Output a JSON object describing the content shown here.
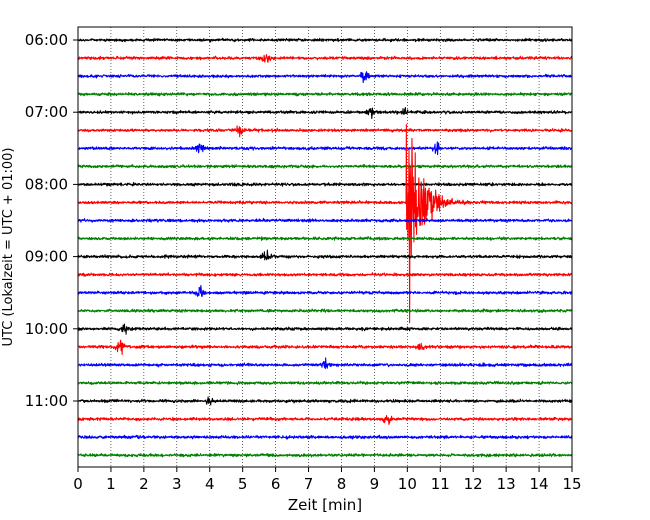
{
  "chart_data": {
    "type": "line",
    "title": "",
    "xlabel": "Zeit  [min]",
    "ylabel": "UTC (Lokalzeit = UTC + 01:00)",
    "xlim": [
      0,
      15
    ],
    "x_ticks": [
      0,
      1,
      2,
      3,
      4,
      5,
      6,
      7,
      8,
      9,
      10,
      11,
      12,
      13,
      14,
      15
    ],
    "y_tick_labels": [
      "06:00",
      "07:00",
      "08:00",
      "09:00",
      "10:00",
      "11:00"
    ],
    "y_tick_rows": [
      0,
      4,
      8,
      12,
      16,
      20
    ],
    "line_start_time": "06:00",
    "line_interval_min": 15,
    "grid_x": "dotted vertical at each minute",
    "color_cycle": [
      "#000000",
      "#ff0000",
      "#0000ff",
      "#008000"
    ],
    "series": [
      {
        "start": "06:00",
        "color": "#000000",
        "events": []
      },
      {
        "start": "06:15",
        "color": "#ff0000",
        "events": [
          {
            "t": 5.7,
            "amp": 0.4
          }
        ]
      },
      {
        "start": "06:30",
        "color": "#0000ff",
        "events": [
          {
            "t": 8.7,
            "amp": 0.45
          }
        ]
      },
      {
        "start": "06:45",
        "color": "#008000",
        "events": []
      },
      {
        "start": "07:00",
        "color": "#000000",
        "events": [
          {
            "t": 8.9,
            "amp": 0.35
          },
          {
            "t": 9.9,
            "amp": 0.3
          }
        ]
      },
      {
        "start": "07:15",
        "color": "#ff0000",
        "events": [
          {
            "t": 4.9,
            "amp": 0.4
          }
        ]
      },
      {
        "start": "07:30",
        "color": "#0000ff",
        "events": [
          {
            "t": 3.7,
            "amp": 0.45
          },
          {
            "t": 10.9,
            "amp": 0.45
          }
        ]
      },
      {
        "start": "07:45",
        "color": "#008000",
        "events": []
      },
      {
        "start": "08:00",
        "color": "#000000",
        "events": []
      },
      {
        "start": "08:15",
        "color": "#ff0000",
        "events": [
          {
            "t": 10.0,
            "amp": 8.0
          }
        ]
      },
      {
        "start": "08:30",
        "color": "#0000ff",
        "events": []
      },
      {
        "start": "08:45",
        "color": "#008000",
        "events": []
      },
      {
        "start": "09:00",
        "color": "#000000",
        "events": [
          {
            "t": 5.7,
            "amp": 0.35
          }
        ]
      },
      {
        "start": "09:15",
        "color": "#ff0000",
        "events": []
      },
      {
        "start": "09:30",
        "color": "#0000ff",
        "events": [
          {
            "t": 3.7,
            "amp": 0.45
          }
        ]
      },
      {
        "start": "09:45",
        "color": "#008000",
        "events": []
      },
      {
        "start": "10:00",
        "color": "#000000",
        "events": [
          {
            "t": 1.4,
            "amp": 0.35
          }
        ]
      },
      {
        "start": "10:15",
        "color": "#ff0000",
        "events": [
          {
            "t": 1.3,
            "amp": 0.6
          },
          {
            "t": 10.4,
            "amp": 0.3
          }
        ]
      },
      {
        "start": "10:30",
        "color": "#0000ff",
        "events": [
          {
            "t": 7.5,
            "amp": 0.35
          }
        ]
      },
      {
        "start": "10:45",
        "color": "#008000",
        "events": []
      },
      {
        "start": "11:00",
        "color": "#000000",
        "events": [
          {
            "t": 4.0,
            "amp": 0.3
          }
        ]
      },
      {
        "start": "11:15",
        "color": "#ff0000",
        "events": [
          {
            "t": 9.4,
            "amp": 0.45
          }
        ]
      },
      {
        "start": "11:30",
        "color": "#0000ff",
        "events": []
      },
      {
        "start": "11:45",
        "color": "#008000",
        "events": []
      }
    ]
  }
}
